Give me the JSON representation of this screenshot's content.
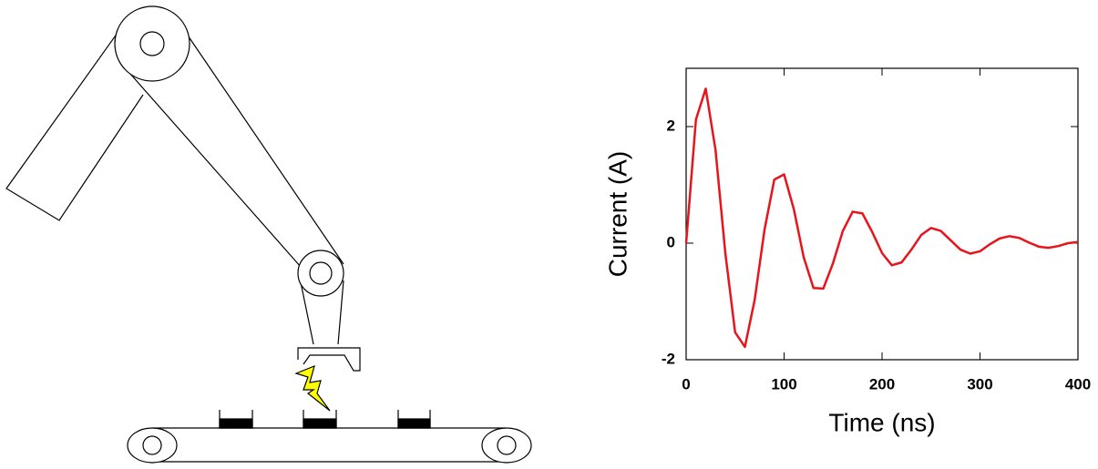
{
  "chart_data": {
    "type": "line",
    "x_label": "Time (ns)",
    "y_label": "Current (A)",
    "x": [
      0,
      10,
      20,
      30,
      40,
      50,
      60,
      70,
      80,
      90,
      100,
      110,
      120,
      130,
      140,
      150,
      160,
      170,
      180,
      190,
      200,
      210,
      220,
      230,
      240,
      250,
      260,
      270,
      280,
      290,
      300,
      310,
      320,
      330,
      340,
      350,
      360,
      370,
      380,
      390,
      400
    ],
    "series": [
      {
        "color": "#e8141b",
        "values": [
          0,
          2.12,
          2.65,
          1.6,
          -0.17,
          -1.53,
          -1.78,
          -0.97,
          0.23,
          1.09,
          1.18,
          0.58,
          -0.24,
          -0.77,
          -0.78,
          -0.34,
          0.21,
          0.54,
          0.51,
          0.19,
          -0.17,
          -0.38,
          -0.33,
          -0.11,
          0.14,
          0.26,
          0.21,
          0.05,
          -0.11,
          -0.18,
          -0.14,
          -0.02,
          0.08,
          0.12,
          0.09,
          0.01,
          -0.06,
          -0.08,
          -0.05,
          0,
          0.02
        ]
      }
    ],
    "xlim": [
      0,
      400
    ],
    "xticks": [
      0,
      100,
      200,
      300,
      400
    ],
    "ylim": [
      -2,
      3
    ],
    "yticks": [
      -2,
      0,
      2
    ]
  }
}
